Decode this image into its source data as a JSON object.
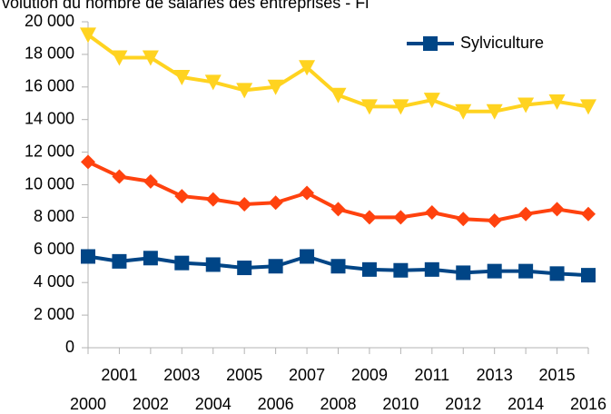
{
  "chart_data": {
    "type": "line",
    "title": "volution du nombre de salariés des entreprises - Fi",
    "categories": [
      "2000",
      "2001",
      "2002",
      "2003",
      "2004",
      "2005",
      "2006",
      "2007",
      "2008",
      "2009",
      "2010",
      "2011",
      "2012",
      "2013",
      "2014",
      "2015",
      "2016"
    ],
    "series": [
      {
        "color": "#ffd320",
        "marker": "triangle-down",
        "values": [
          19200,
          17800,
          17800,
          16600,
          16300,
          15800,
          16000,
          17200,
          15500,
          14800,
          14800,
          15200,
          14500,
          14500,
          14900,
          15100,
          14800
        ]
      },
      {
        "color": "#ff420e",
        "marker": "diamond",
        "values": [
          11400,
          10500,
          10200,
          9300,
          9100,
          8800,
          8900,
          9500,
          8500,
          8000,
          8000,
          8300,
          7900,
          7800,
          8200,
          8500,
          8200
        ]
      },
      {
        "name": "Sylviculture",
        "color": "#004586",
        "marker": "square",
        "values": [
          5600,
          5300,
          5500,
          5200,
          5100,
          4900,
          5000,
          5600,
          5000,
          4800,
          4750,
          4800,
          4600,
          4700,
          4700,
          4550,
          4450
        ]
      }
    ],
    "ylim": [
      0,
      20000
    ],
    "yticks": [
      0,
      {
        "value": 2000,
        "label": "2 000"
      },
      {
        "value": 4000,
        "label": "4 000"
      },
      {
        "value": 6000,
        "label": "6 000"
      },
      {
        "value": 8000,
        "label": "8 000"
      },
      {
        "value": 10000,
        "label": "10 000"
      },
      {
        "value": 12000,
        "label": "12 000"
      },
      {
        "value": 14000,
        "label": "14 000"
      },
      {
        "value": 16000,
        "label": "16 000"
      },
      {
        "value": 18000,
        "label": "18 000"
      },
      {
        "value": 20000,
        "label": "20 000"
      }
    ],
    "grid": false,
    "legend": "top-right"
  }
}
